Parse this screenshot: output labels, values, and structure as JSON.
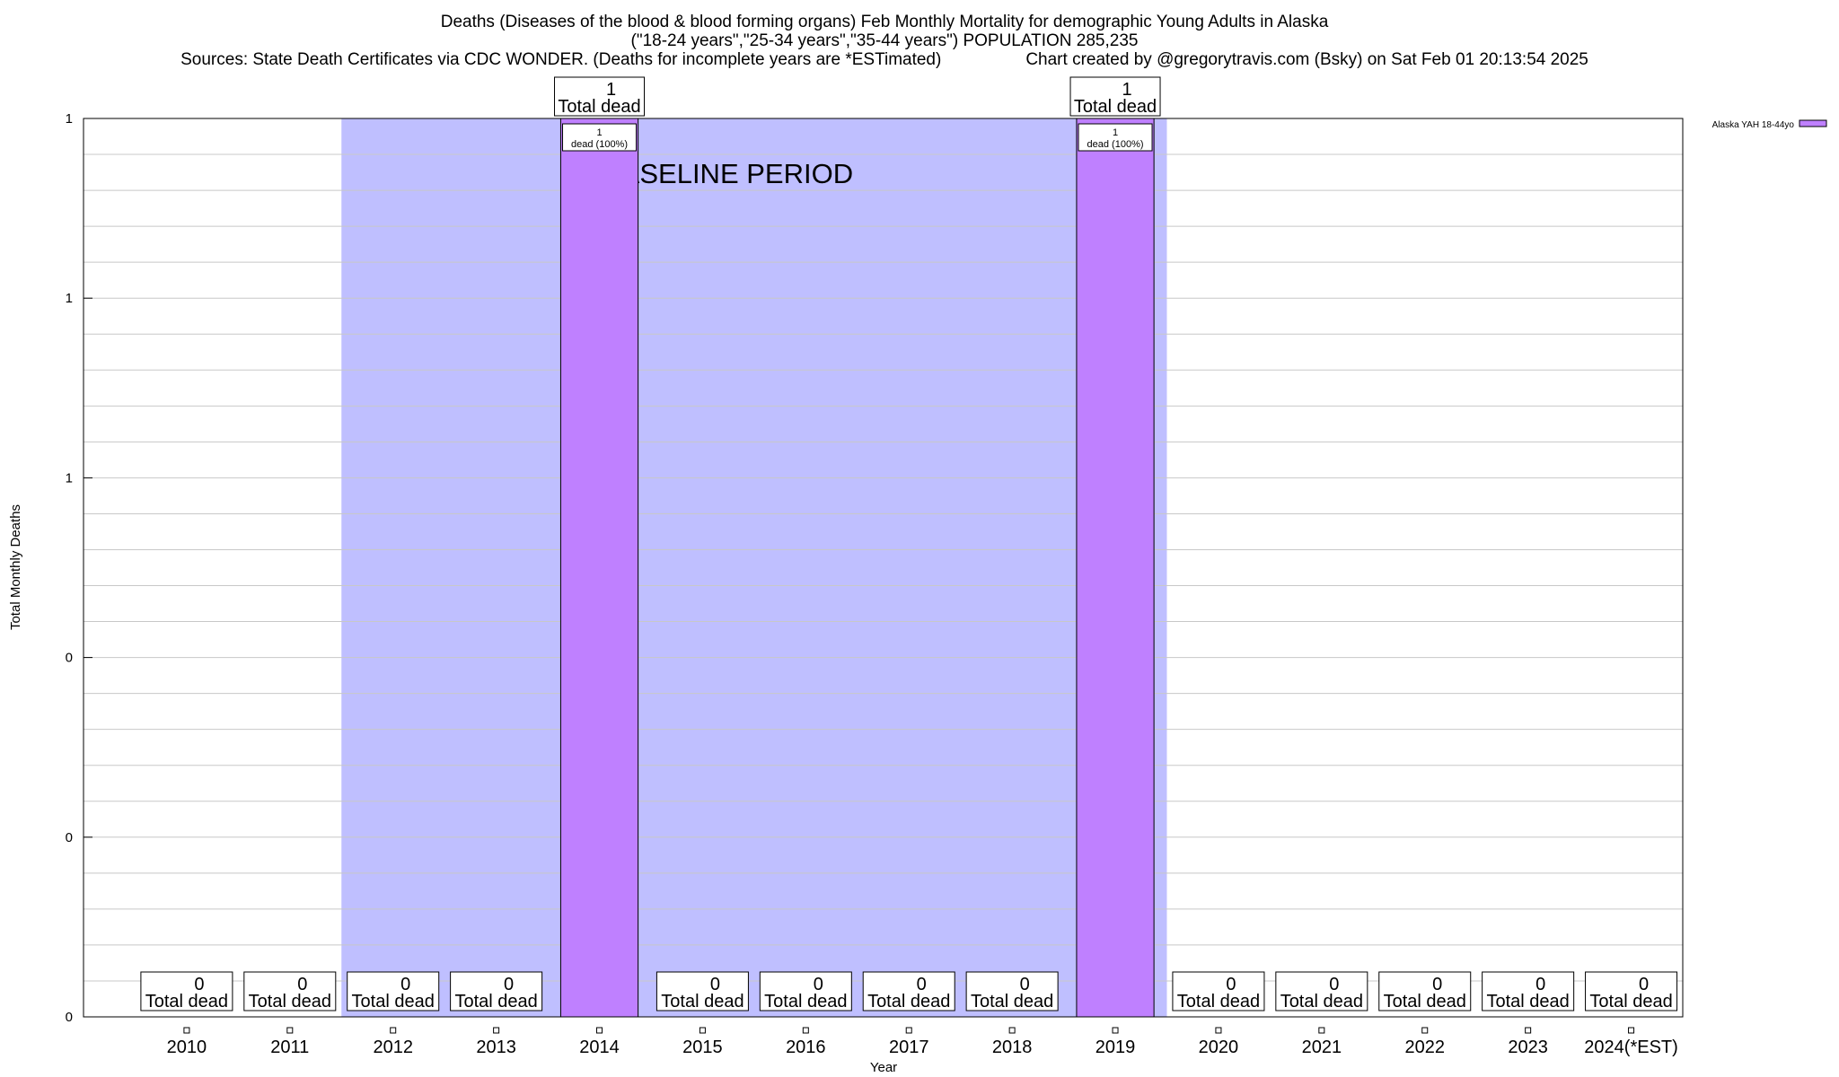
{
  "chart_data": {
    "type": "bar",
    "title": "Deaths (Diseases of the blood & blood forming organs) Feb Monthly Mortality for demographic Young Adults in Alaska",
    "subtitle": "(\"18-24 years\",\"25-34 years\",\"35-44 years\") POPULATION 285,235",
    "sources": "Sources: State Death Certificates via CDC WONDER. (Deaths for incomplete years are *ESTimated)",
    "credit": "Chart created by @gregorytravis.com (Bsky) on Sat Feb 01 20:13:54 2025",
    "xlabel": "Year",
    "ylabel": "Total Monthly Deaths",
    "categories": [
      "2010",
      "2011",
      "2012",
      "2013",
      "2014",
      "2015",
      "2016",
      "2017",
      "2018",
      "2019",
      "2020",
      "2021",
      "2022",
      "2023",
      "2024(*EST)"
    ],
    "series": [
      {
        "name": "Alaska YAH 18-44yo",
        "color": "#bf80ff",
        "values": [
          0,
          0,
          0,
          0,
          1,
          0,
          0,
          0,
          0,
          1,
          0,
          0,
          0,
          0,
          0
        ]
      }
    ],
    "ylim": [
      0,
      1
    ],
    "ytick_labels": [
      "0",
      "0",
      "0",
      "1",
      "1",
      "1"
    ],
    "grid": true,
    "legend_position": "top-right",
    "baseline_period": {
      "label": "BASELINE PERIOD",
      "from": "2012",
      "to": "2019",
      "color": "#bfbfff"
    },
    "total_label_suffix": "Total dead",
    "bar_label_suffix": "dead (100%)"
  }
}
